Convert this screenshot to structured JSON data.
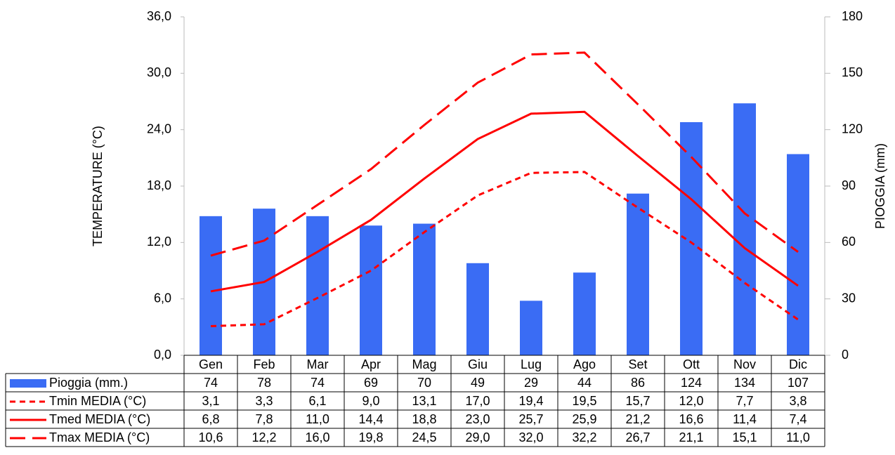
{
  "chart_data": {
    "type": "combo",
    "categories": [
      "Gen",
      "Feb",
      "Mar",
      "Apr",
      "Mag",
      "Giu",
      "Lug",
      "Ago",
      "Set",
      "Ott",
      "Nov",
      "Dic"
    ],
    "ylabel": "TEMPERATURE (°C)",
    "y2label": "PIOGGIA (mm)",
    "ylim": [
      0,
      36
    ],
    "yticks": [
      {
        "value": 0,
        "label": "0,0"
      },
      {
        "value": 6,
        "label": "6,0"
      },
      {
        "value": 12,
        "label": "12,0"
      },
      {
        "value": 18,
        "label": "18,0"
      },
      {
        "value": 24,
        "label": "24,0"
      },
      {
        "value": 30,
        "label": "30,0"
      },
      {
        "value": 36,
        "label": "36,0"
      }
    ],
    "y2lim": [
      0,
      180
    ],
    "y2ticks": [
      0,
      30,
      60,
      90,
      120,
      150,
      180
    ],
    "ycolor": "#ff0000",
    "y2color": "#3a6cf4",
    "series": [
      {
        "name": "Pioggia (mm.)",
        "type": "bar",
        "axis": "y2",
        "color": "#3a6cf4",
        "values": [
          74,
          78,
          74,
          69,
          70,
          49,
          29,
          44,
          86,
          124,
          134,
          107
        ]
      },
      {
        "name": "Tmin MEDIA (°C)",
        "type": "line",
        "dash": "short",
        "color": "#ff0000",
        "values": [
          3.1,
          3.3,
          6.1,
          9.0,
          13.1,
          17.0,
          19.4,
          19.5,
          15.7,
          12.0,
          7.7,
          3.8
        ],
        "value_labels": [
          "3,1",
          "3,3",
          "6,1",
          "9,0",
          "13,1",
          "17,0",
          "19,4",
          "19,5",
          "15,7",
          "12,0",
          "7,7",
          "3,8"
        ]
      },
      {
        "name": "Tmed MEDIA (°C)",
        "type": "line",
        "dash": "solid",
        "color": "#ff0000",
        "values": [
          6.8,
          7.8,
          11.0,
          14.4,
          18.8,
          23.0,
          25.7,
          25.9,
          21.2,
          16.6,
          11.4,
          7.4
        ],
        "value_labels": [
          "6,8",
          "7,8",
          "11,0",
          "14,4",
          "18,8",
          "23,0",
          "25,7",
          "25,9",
          "21,2",
          "16,6",
          "11,4",
          "7,4"
        ]
      },
      {
        "name": "Tmax MEDIA (°C)",
        "type": "line",
        "dash": "long",
        "color": "#ff0000",
        "values": [
          10.6,
          12.2,
          16.0,
          19.8,
          24.5,
          29.0,
          32.0,
          32.2,
          26.7,
          21.1,
          15.1,
          11.0
        ],
        "value_labels": [
          "10,6",
          "12,2",
          "16,0",
          "19,8",
          "24,5",
          "29,0",
          "32,0",
          "32,2",
          "26,7",
          "21,1",
          "15,1",
          "11,0"
        ]
      }
    ]
  }
}
